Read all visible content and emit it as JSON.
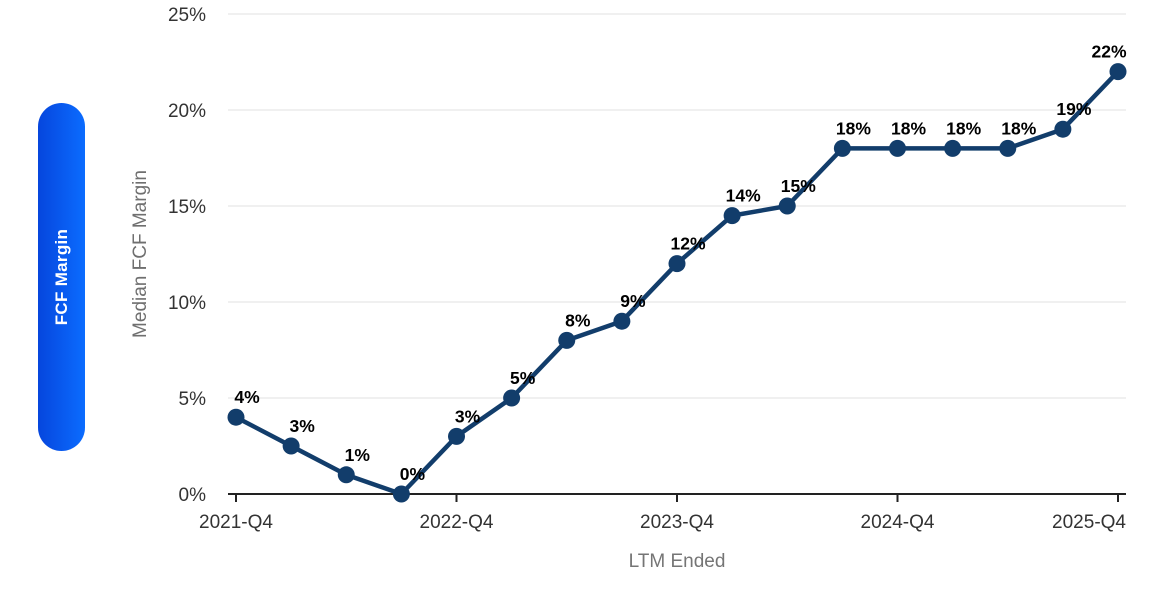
{
  "pill": {
    "label": "FCF Margin",
    "gradient_start": "#0646dd",
    "gradient_end": "#0b6cff",
    "text_color": "#ffffff"
  },
  "chart_data": {
    "type": "line",
    "title": "",
    "xlabel": "LTM Ended",
    "ylabel": "Median FCF Margin",
    "x_tick_labels": [
      "2021-Q4",
      "2022-Q4",
      "2023-Q4",
      "2024-Q4",
      "2025-Q4"
    ],
    "x_tick_point_indices": [
      0,
      4,
      8,
      12,
      16
    ],
    "y_tick_labels": [
      "0%",
      "5%",
      "10%",
      "15%",
      "20%",
      "25%"
    ],
    "y_tick_values": [
      0,
      5,
      10,
      15,
      20,
      25
    ],
    "ylim": [
      0,
      25
    ],
    "grid": true,
    "legend_position": "none",
    "series": [
      {
        "name": "Median FCF Margin",
        "values": [
          4,
          2.5,
          1,
          0,
          3,
          5,
          8,
          9,
          12,
          14.5,
          15,
          18,
          18,
          18,
          18,
          19,
          22
        ],
        "point_labels": [
          "4%",
          "3%",
          "1%",
          "0%",
          "3%",
          "5%",
          "8%",
          "9%",
          "12%",
          "14%",
          "15%",
          "18%",
          "18%",
          "18%",
          "18%",
          "19%",
          "22%"
        ]
      }
    ],
    "colors": {
      "line": "#123d6b",
      "marker": "#123d6b",
      "data_label": "#000000",
      "tick_label": "#333333",
      "axis_line": "#222222",
      "grid_line": "#ebebeb",
      "axis_title": "#6f6f6f"
    }
  }
}
